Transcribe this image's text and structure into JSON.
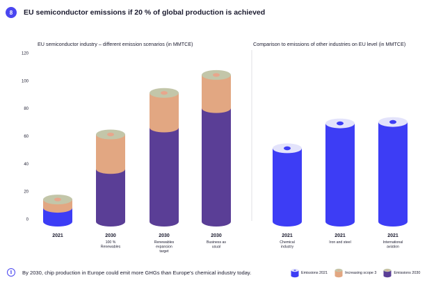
{
  "header": {
    "badge": "8",
    "title": "EU semiconductor emissions if 20 % of global production is achieved"
  },
  "footer": {
    "note": "By 2030, chip production in Europe could emit more GHGs than Europe's chemical industry today."
  },
  "colors": {
    "emissions_2021": "#3d3df5",
    "increasing_scope3": "#e2a782",
    "emissions_2030": "#5a3e96",
    "accent": "#4a46f0"
  },
  "chart_data": [
    {
      "type": "bar",
      "title": "EU semiconductor industry – different emission scenarios (in MMTCE)",
      "ylim": [
        0,
        120
      ],
      "yticks": [
        0,
        20,
        40,
        60,
        80,
        100,
        120
      ],
      "grid": false,
      "categories": [
        {
          "year": "2021",
          "label": ""
        },
        {
          "year": "2030",
          "label": "100 % Renewables"
        },
        {
          "year": "2030",
          "label": "Renewables expansion target"
        },
        {
          "year": "2030",
          "label": "Business as usual"
        }
      ],
      "series": [
        {
          "name": "Emissions 2021",
          "color_key": "emissions_2021",
          "values": [
            8,
            0,
            0,
            0
          ]
        },
        {
          "name": "Emissions 2030",
          "color_key": "emissions_2030",
          "values": [
            0,
            36,
            66,
            80
          ]
        },
        {
          "name": "Increasing scope 3",
          "color_key": "increasing_scope3",
          "values": [
            6,
            25,
            25,
            24
          ]
        }
      ]
    },
    {
      "type": "bar",
      "title": "Comparison to emissions of other industries on EU level  (in MMTCE)",
      "ylim": [
        0,
        120
      ],
      "grid": false,
      "categories": [
        {
          "year": "2021",
          "label": "Chemical industry"
        },
        {
          "year": "2021",
          "label": "Iron and steel"
        },
        {
          "year": "2021",
          "label": "International aviation"
        }
      ],
      "series": [
        {
          "name": "Emissions 2021",
          "color_key": "emissions_2021",
          "values": [
            51,
            69,
            70
          ]
        }
      ]
    }
  ],
  "legend": [
    {
      "label": "Emissions 2021",
      "color_key": "emissions_2021"
    },
    {
      "label": "Increasing scope 3",
      "color_key": "increasing_scope3"
    },
    {
      "label": "Emissions 2030",
      "color_key": "emissions_2030"
    }
  ]
}
